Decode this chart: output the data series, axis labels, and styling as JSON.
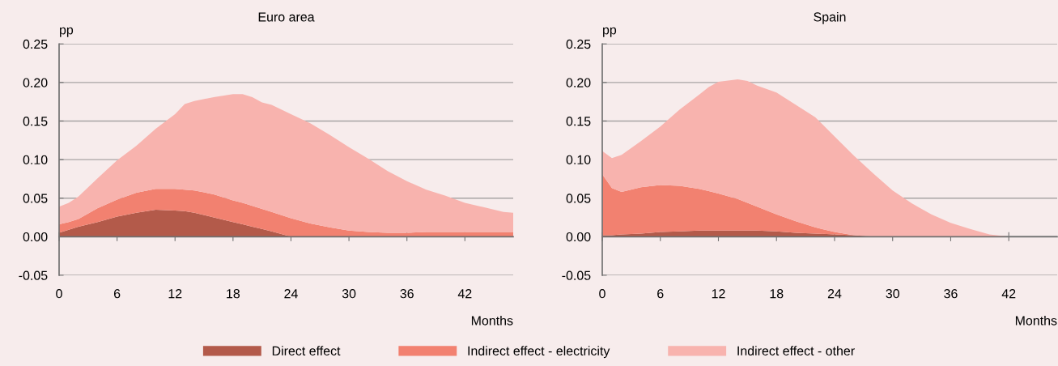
{
  "chart_data": [
    {
      "type": "area",
      "stacked": true,
      "title": "Euro area",
      "ylabel": "pp",
      "xlabel": "Months",
      "x": [
        0,
        1,
        2,
        4,
        6,
        8,
        10,
        12,
        13,
        14,
        16,
        18,
        19,
        20,
        21,
        22,
        24,
        26,
        28,
        30,
        32,
        34,
        36,
        38,
        40,
        42,
        44,
        46,
        47
      ],
      "series": [
        {
          "name": "Direct effect",
          "color": "#b35a4a",
          "values": [
            0.005,
            0.009,
            0.013,
            0.019,
            0.026,
            0.031,
            0.035,
            0.034,
            0.033,
            0.031,
            0.025,
            0.019,
            0.016,
            0.013,
            0.01,
            0.007,
            0,
            0,
            0,
            0,
            0,
            0,
            0,
            0,
            0,
            0,
            0,
            0,
            0
          ]
        },
        {
          "name": "Indirect effect - electricity",
          "color": "#f28170",
          "values": [
            0.011,
            0.01,
            0.01,
            0.018,
            0.022,
            0.026,
            0.027,
            0.028,
            0.028,
            0.029,
            0.03,
            0.028,
            0.028,
            0.027,
            0.026,
            0.025,
            0.024,
            0.017,
            0.012,
            0.008,
            0.006,
            0.005,
            0.005,
            0.006,
            0.006,
            0.006,
            0.006,
            0.006,
            0.006
          ]
        },
        {
          "name": "Indirect effect - other",
          "color": "#f8b3ae",
          "values": [
            0.023,
            0.025,
            0.029,
            0.039,
            0.051,
            0.061,
            0.078,
            0.097,
            0.111,
            0.116,
            0.126,
            0.138,
            0.141,
            0.141,
            0.138,
            0.139,
            0.135,
            0.13,
            0.12,
            0.108,
            0.095,
            0.08,
            0.067,
            0.055,
            0.047,
            0.038,
            0.032,
            0.026,
            0.025
          ]
        }
      ],
      "xlim": [
        0,
        47
      ],
      "xticks": [
        0,
        6,
        12,
        18,
        24,
        30,
        36,
        42
      ],
      "ylim": [
        -0.05,
        0.25
      ],
      "yticks": [
        {
          "value": -0.05,
          "label": "-0.05"
        },
        {
          "value": 0,
          "label": "0.00"
        },
        {
          "value": 0.05,
          "label": "0.05"
        },
        {
          "value": 0.1,
          "label": "0.10"
        },
        {
          "value": 0.15,
          "label": "0.15"
        },
        {
          "value": 0.2,
          "label": "0.20"
        },
        {
          "value": 0.25,
          "label": "0.25"
        }
      ],
      "grid": "y",
      "legend": "bottom"
    },
    {
      "type": "area",
      "stacked": true,
      "title": "Spain",
      "ylabel": "pp",
      "xlabel": "Months",
      "x": [
        0,
        1,
        2,
        4,
        6,
        8,
        10,
        11,
        12,
        14,
        15,
        16,
        18,
        20,
        22,
        24,
        26,
        28,
        30,
        32,
        34,
        36,
        38,
        40,
        42,
        44,
        46,
        47
      ],
      "series": [
        {
          "name": "Direct effect",
          "color": "#b35a4a",
          "values": [
            0.002,
            0.002,
            0.003,
            0.004,
            0.006,
            0.007,
            0.008,
            0.008,
            0.008,
            0.008,
            0.008,
            0.008,
            0.007,
            0.005,
            0.004,
            0.003,
            0.002,
            0,
            0,
            0,
            0,
            0,
            0,
            0,
            0,
            0,
            0,
            0
          ]
        },
        {
          "name": "Indirect effect - electricity",
          "color": "#f28170",
          "values": [
            0.079,
            0.061,
            0.055,
            0.06,
            0.061,
            0.059,
            0.054,
            0.051,
            0.048,
            0.041,
            0.036,
            0.031,
            0.022,
            0.015,
            0.008,
            0.003,
            0,
            0,
            0,
            0,
            0,
            0,
            0,
            0,
            0,
            0,
            0,
            0
          ]
        },
        {
          "name": "Indirect effect - other",
          "color": "#f8b3ae",
          "values": [
            0.03,
            0.039,
            0.048,
            0.06,
            0.076,
            0.099,
            0.122,
            0.135,
            0.145,
            0.155,
            0.158,
            0.157,
            0.158,
            0.151,
            0.143,
            0.124,
            0.103,
            0.082,
            0.06,
            0.043,
            0.029,
            0.018,
            0.01,
            0.003,
            0,
            0,
            0,
            0
          ]
        }
      ],
      "xlim": [
        0,
        47
      ],
      "xticks": [
        0,
        6,
        12,
        18,
        24,
        30,
        36,
        42
      ],
      "ylim": [
        -0.05,
        0.25
      ],
      "yticks": [
        {
          "value": -0.05,
          "label": "-0.05"
        },
        {
          "value": 0,
          "label": "0.00"
        },
        {
          "value": 0.05,
          "label": "0.05"
        },
        {
          "value": 0.1,
          "label": "0.10"
        },
        {
          "value": 0.15,
          "label": "0.15"
        },
        {
          "value": 0.2,
          "label": "0.20"
        },
        {
          "value": 0.25,
          "label": "0.25"
        }
      ],
      "grid": "y",
      "legend": "bottom"
    }
  ]
}
